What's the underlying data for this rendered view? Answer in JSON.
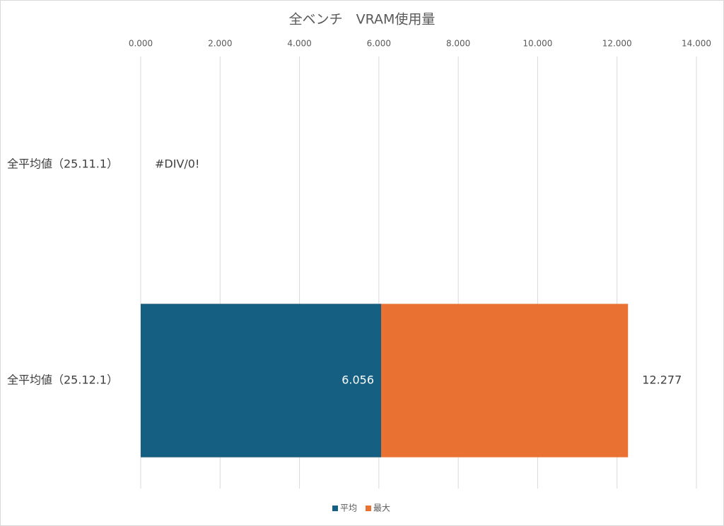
{
  "chart_data": {
    "type": "bar",
    "orientation": "horizontal",
    "overlap": true,
    "title": "全ベンチ　VRAM使用量",
    "categories": [
      "全平均値（25.11.1）",
      "全平均値（25.12.1）"
    ],
    "series": [
      {
        "name": "平均",
        "color": "#156082",
        "values": [
          null,
          6.056
        ],
        "value_labels": [
          null,
          "6.056"
        ]
      },
      {
        "name": "最大",
        "color": "#e97132",
        "values": [
          null,
          12.277
        ],
        "value_labels": [
          "#DIV/0!",
          "12.277"
        ]
      }
    ],
    "xlim": [
      0,
      14
    ],
    "xticks": [
      {
        "value": 0,
        "label": "0.000"
      },
      {
        "value": 2,
        "label": "2.000"
      },
      {
        "value": 4,
        "label": "4.000"
      },
      {
        "value": 6,
        "label": "6.000"
      },
      {
        "value": 8,
        "label": "8.000"
      },
      {
        "value": 10,
        "label": "10.000"
      },
      {
        "value": 12,
        "label": "12.000"
      },
      {
        "value": 14,
        "label": "14.000"
      }
    ],
    "grid": true,
    "legend": "bottom"
  }
}
